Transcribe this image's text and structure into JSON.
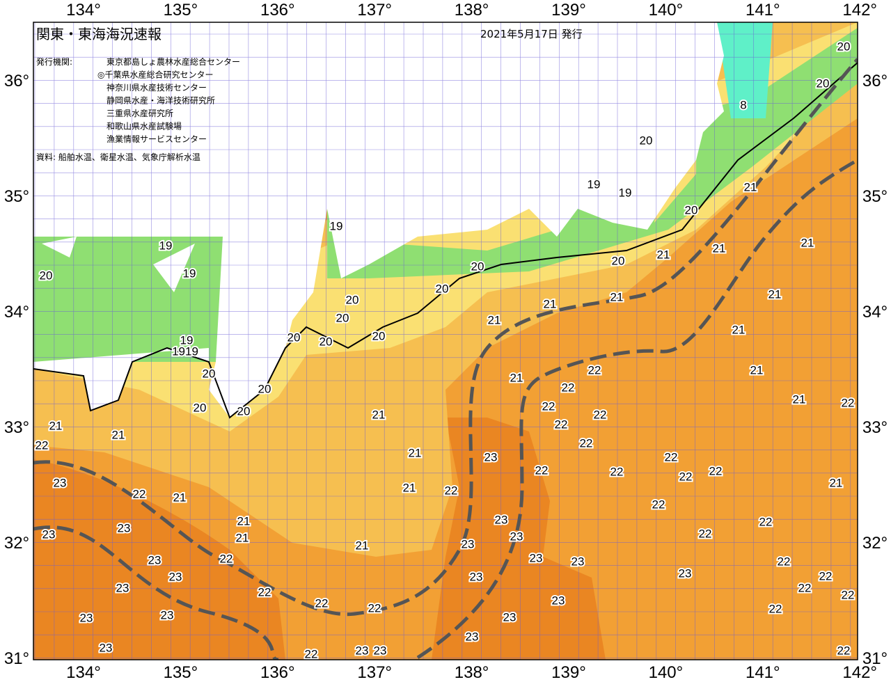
{
  "header": {
    "title": "関東・東海海況速報",
    "date": "2021年5月17日 発行",
    "issuer_label": "発行機関:",
    "issuers": [
      "東京都島しょ農林水産総合センター",
      "◎千葉県水産総合研究センター",
      "神奈川県水産技術センター",
      "静岡県水産・海洋技術研究所",
      "三重県水産研究所",
      "和歌山県水産試験場",
      "漁業情報サービスセンター"
    ],
    "source": "資料: 船舶水温、衛星水温、気象庁解析水温"
  },
  "longitude_labels": [
    "134°",
    "135°",
    "136°",
    "137°",
    "138°",
    "139°",
    "140°",
    "141°",
    "142°"
  ],
  "latitude_labels": [
    "36°",
    "35°",
    "34°",
    "33°",
    "32°",
    "31°"
  ],
  "contour_labels": [
    "20",
    "20",
    "8",
    "20",
    "19",
    "19",
    "21",
    "20",
    "21",
    "21",
    "21",
    "20",
    "20",
    "19",
    "19",
    "19",
    "20",
    "20",
    "20",
    "21",
    "21",
    "21",
    "21",
    "20",
    "20",
    "20",
    "20",
    "21",
    "19",
    "1919",
    "20",
    "20",
    "20",
    "20",
    "22",
    "21",
    "21",
    "22",
    "22",
    "21",
    "22",
    "21",
    "22",
    "22",
    "21",
    "21",
    "22",
    "22",
    "21",
    "23",
    "22",
    "22",
    "22",
    "22",
    "22",
    "23",
    "22",
    "21",
    "21",
    "22",
    "21",
    "22",
    "23",
    "21",
    "22",
    "23",
    "23",
    "23",
    "22",
    "21",
    "23",
    "21",
    "23",
    "23",
    "22",
    "23",
    "22",
    "23",
    "23",
    "23",
    "22",
    "23",
    "22",
    "22",
    "22",
    "23",
    "22",
    "22",
    "22",
    "23",
    "23",
    "23",
    "23",
    "23",
    "22",
    "23",
    "23",
    "22"
  ]
}
